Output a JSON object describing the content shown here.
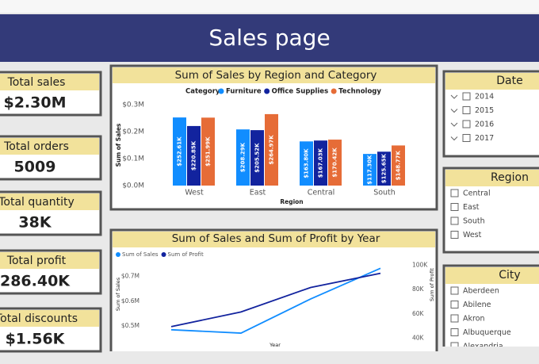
{
  "header": {
    "title": "Sales page"
  },
  "kpis": [
    {
      "label": "Total sales",
      "value": "$2.30M"
    },
    {
      "label": "Total orders",
      "value": "5009"
    },
    {
      "label": "Total quantity",
      "value": "38K"
    },
    {
      "label": "Total profit",
      "value": "286.40K"
    },
    {
      "label": "Total discounts",
      "value": "$1.56K"
    }
  ],
  "chart_data": [
    {
      "type": "bar",
      "title": "Sum of Sales by Region and Category",
      "legend_title": "Category",
      "x_label": "Region",
      "y_label": "Sum of Sales",
      "categories": [
        "West",
        "East",
        "Central",
        "South"
      ],
      "series": [
        {
          "name": "Furniture",
          "color": "#118dff",
          "values": [
            252610,
            208290,
            163800,
            117300
          ],
          "value_labels": [
            "$252.61K",
            "$208.29K",
            "$163.80K",
            "$117.30K"
          ]
        },
        {
          "name": "Office Supplies",
          "color": "#12239e",
          "values": [
            220850,
            205520,
            167030,
            125650
          ],
          "value_labels": [
            "$220.85K",
            "$205.52K",
            "$167.03K",
            "$125.65K"
          ]
        },
        {
          "name": "Technology",
          "color": "#e66c37",
          "values": [
            251990,
            264970,
            170420,
            148770
          ],
          "value_labels": [
            "$251.99K",
            "$264.97K",
            "$170.42K",
            "$148.77K"
          ]
        }
      ],
      "ylim": [
        0,
        300000
      ],
      "yticks": [
        {
          "value": 0,
          "label": "$0.0M"
        },
        {
          "value": 100000,
          "label": "$0.1M"
        },
        {
          "value": 200000,
          "label": "$0.2M"
        },
        {
          "value": 300000,
          "label": "$0.3M"
        }
      ],
      "grid": false
    },
    {
      "type": "line",
      "title": "Sum of Sales and Sum of Profit by Year",
      "x_label": "Year",
      "y_label": "Sum of Sales",
      "y2_label": "Sum of Profit",
      "categories": [
        null,
        null,
        null,
        null
      ],
      "series": [
        {
          "name": "Sum of Sales",
          "color": "#118dff",
          "values": [
            484247,
            470533,
            609206,
            733215
          ]
        },
        {
          "name": "Sum of Profit",
          "color": "#12239e",
          "axis": "y2",
          "values": [
            49544,
            61619,
            81795,
            93439
          ]
        }
      ],
      "ylim": [
        445000,
        760000
      ],
      "yticks": [
        {
          "value": 500000,
          "label": "$0.5M"
        },
        {
          "value": 600000,
          "label": "$0.6M"
        },
        {
          "value": 700000,
          "label": "$0.7M"
        }
      ],
      "y2lim": [
        39000,
        103000
      ],
      "y2ticks": [
        {
          "value": 40000,
          "label": "40K"
        },
        {
          "value": 60000,
          "label": "60K"
        },
        {
          "value": 80000,
          "label": "80K"
        },
        {
          "value": 100000,
          "label": "100K"
        }
      ],
      "grid": false
    }
  ],
  "slicers": [
    {
      "title": "Date",
      "items": [
        "2014",
        "2015",
        "2016",
        "2017"
      ],
      "expandable": true
    },
    {
      "title": "Region",
      "items": [
        "Central",
        "East",
        "South",
        "West"
      ],
      "expandable": false
    },
    {
      "title": "City",
      "items": [
        "Aberdeen",
        "Abilene",
        "Akron",
        "Albuquerque",
        "Alexandria"
      ],
      "expandable": false
    }
  ]
}
